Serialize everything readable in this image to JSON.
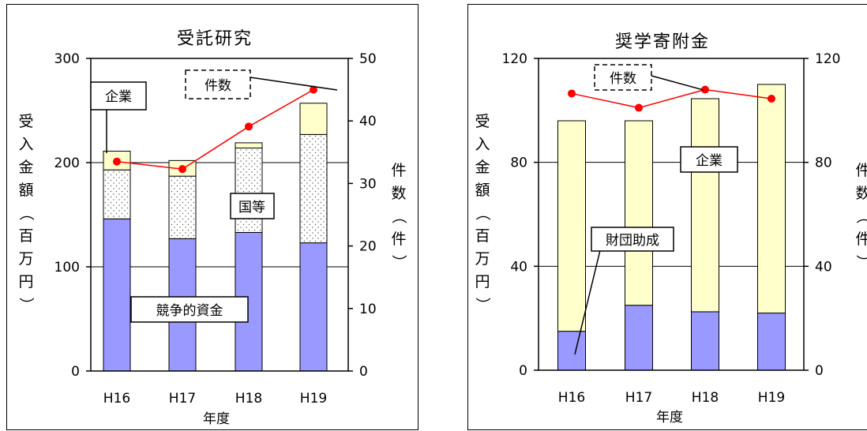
{
  "chart_data": [
    {
      "type": "bar",
      "title": "受託研究",
      "xlabel": "年度",
      "ylabel": "受入金額（百万円）",
      "y2label": "件数（件）",
      "categories": [
        "H16",
        "H17",
        "H18",
        "H19"
      ],
      "ylim": [
        0,
        300
      ],
      "yticks": [
        0,
        100,
        200,
        300
      ],
      "y2lim": [
        0,
        50
      ],
      "y2ticks": [
        0,
        10,
        20,
        30,
        40,
        50
      ],
      "stacked": true,
      "series": [
        {
          "name": "競争的資金",
          "color": "#9999ff",
          "values": [
            146,
            127,
            133,
            123
          ]
        },
        {
          "name": "国等",
          "color": "#ffffff",
          "pattern": "dots",
          "values": [
            47,
            60,
            81,
            104
          ]
        },
        {
          "name": "企業",
          "color": "#ffffcc",
          "values": [
            18,
            15,
            5,
            30
          ]
        }
      ],
      "line": {
        "name": "件数",
        "color": "#ff0000",
        "axis": "right",
        "values": [
          33.5,
          32.3,
          39.1,
          45.0
        ]
      },
      "grid": true
    },
    {
      "type": "bar",
      "title": "奨学寄附金",
      "xlabel": "年度",
      "ylabel": "受入金額（百万円）",
      "y2label": "件数（件）",
      "categories": [
        "H16",
        "H17",
        "H18",
        "H19"
      ],
      "ylim": [
        0,
        120
      ],
      "yticks": [
        0,
        40,
        80,
        120
      ],
      "y2lim": [
        0,
        120
      ],
      "y2ticks": [
        0,
        40,
        80,
        120
      ],
      "stacked": true,
      "series": [
        {
          "name": "財団助成",
          "color": "#9999ff",
          "values": [
            15,
            25,
            22.5,
            22
          ]
        },
        {
          "name": "企業",
          "color": "#ffffcc",
          "values": [
            81,
            71,
            82,
            88
          ]
        }
      ],
      "line": {
        "name": "件数",
        "color": "#ff0000",
        "axis": "right",
        "values": [
          106.5,
          101,
          108,
          104.5
        ]
      },
      "grid": true
    }
  ],
  "left": {
    "title": "受託研究",
    "xlabel": "年度",
    "ylabel_chars": [
      "受",
      "入",
      "金",
      "額",
      "（",
      "百",
      "万",
      "円",
      "）"
    ],
    "y2label_chars": [
      "件",
      "数",
      "（",
      "件",
      "）"
    ],
    "annotations": {
      "kigyo": "企業",
      "kensu": "件数",
      "kunito": "国等",
      "kyoso": "競争的資金"
    }
  },
  "right": {
    "title": "奨学寄附金",
    "xlabel": "年度",
    "ylabel_chars": [
      "受",
      "入",
      "金",
      "額",
      "（",
      "百",
      "万",
      "円",
      "）"
    ],
    "y2label_chars": [
      "件",
      "数",
      "（",
      "件",
      "）"
    ],
    "annotations": {
      "kensu": "件数",
      "kigyo": "企業",
      "zaidan": "財団助成"
    }
  }
}
